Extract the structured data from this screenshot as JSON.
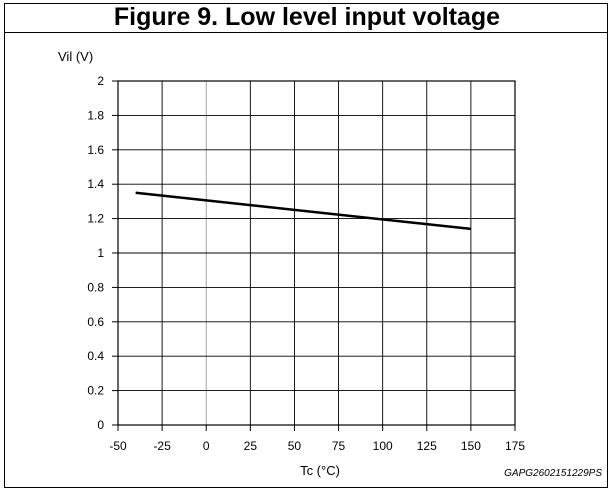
{
  "figure": {
    "title": "Figure 9. Low level input voltage",
    "code": "GAPG2602151229PS"
  },
  "chart_data": {
    "type": "line",
    "title": "Figure 9. Low level input voltage",
    "xlabel": "Tc (°C)",
    "ylabel": "Vil (V)",
    "xlim": [
      -50,
      175
    ],
    "ylim": [
      0,
      2
    ],
    "xticks": [
      -50,
      -25,
      0,
      25,
      50,
      75,
      100,
      125,
      150,
      175
    ],
    "yticks": [
      0,
      0.2,
      0.4,
      0.6,
      0.8,
      1,
      1.2,
      1.4,
      1.6,
      1.8,
      2
    ],
    "grid": true,
    "series": [
      {
        "x": [
          -40,
          150
        ],
        "y": [
          1.35,
          1.14
        ]
      }
    ]
  }
}
